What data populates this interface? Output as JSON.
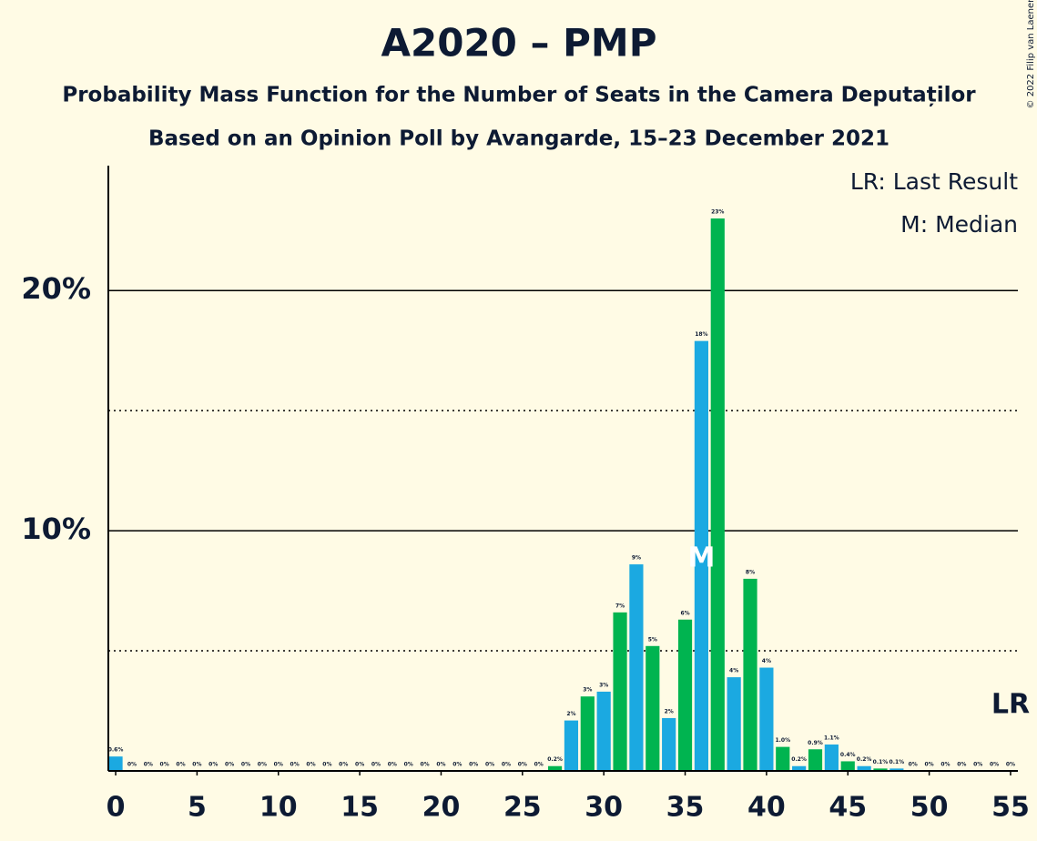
{
  "chart_data": {
    "type": "bar",
    "title": "A2020 – PMP",
    "subtitle": "Probability Mass Function for the Number of Seats in the Camera Deputaților",
    "subtitle2": "Based on an Opinion Poll by Avangarde, 15–23 December 2021",
    "copyright": "© 2022 Filip van Laenen",
    "legend": [
      "LR: Last Result",
      "M: Median"
    ],
    "x": [
      0,
      1,
      2,
      3,
      4,
      5,
      6,
      7,
      8,
      9,
      10,
      11,
      12,
      13,
      14,
      15,
      16,
      17,
      18,
      19,
      20,
      21,
      22,
      23,
      24,
      25,
      26,
      27,
      28,
      29,
      30,
      31,
      32,
      33,
      34,
      35,
      36,
      37,
      38,
      39,
      40,
      41,
      42,
      43,
      44,
      45,
      46,
      47,
      48,
      49,
      50,
      51,
      52,
      53,
      54,
      55
    ],
    "values": [
      0.6,
      0,
      0,
      0,
      0,
      0,
      0,
      0,
      0,
      0,
      0,
      0,
      0,
      0,
      0,
      0,
      0,
      0,
      0,
      0,
      0,
      0,
      0,
      0,
      0,
      0,
      0,
      0.2,
      2.1,
      3.1,
      3.3,
      6.6,
      8.6,
      5.2,
      2.2,
      6.3,
      17.9,
      23.0,
      3.9,
      8.0,
      4.3,
      1.0,
      0.2,
      0.9,
      1.1,
      0.4,
      0.2,
      0.1,
      0.1,
      0,
      0,
      0,
      0,
      0,
      0,
      0
    ],
    "value_labels": [
      "0.6%",
      "0%",
      "0%",
      "0%",
      "0%",
      "0%",
      "0%",
      "0%",
      "0%",
      "0%",
      "0%",
      "0%",
      "0%",
      "0%",
      "0%",
      "0%",
      "0%",
      "0%",
      "0%",
      "0%",
      "0%",
      "0%",
      "0%",
      "0%",
      "0%",
      "0%",
      "0%",
      "0.2%",
      "2%",
      "3%",
      "3%",
      "7%",
      "9%",
      "5%",
      "2%",
      "6%",
      "18%",
      "23%",
      "4%",
      "8%",
      "4%",
      "1.0%",
      "0.2%",
      "0.9%",
      "1.1%",
      "0.4%",
      "0.2%",
      "0.1%",
      "0.1%",
      "0%",
      "0%",
      "0%",
      "0%",
      "0%",
      "0%",
      "0%"
    ],
    "colors": [
      "#1ba9e1",
      "#00b450"
    ],
    "xlim": [
      -0.45,
      55.45
    ],
    "xticks": [
      0,
      5,
      10,
      15,
      20,
      25,
      30,
      35,
      40,
      45,
      50,
      55
    ],
    "ylim": [
      0,
      25.2
    ],
    "yticks": [
      {
        "value": 10,
        "label": "10%"
      },
      {
        "value": 20,
        "label": "20%"
      }
    ],
    "minor_yticks": [
      5,
      15
    ],
    "median": 36,
    "median_label": "M",
    "last_result": 55,
    "last_result_label": "LR"
  }
}
